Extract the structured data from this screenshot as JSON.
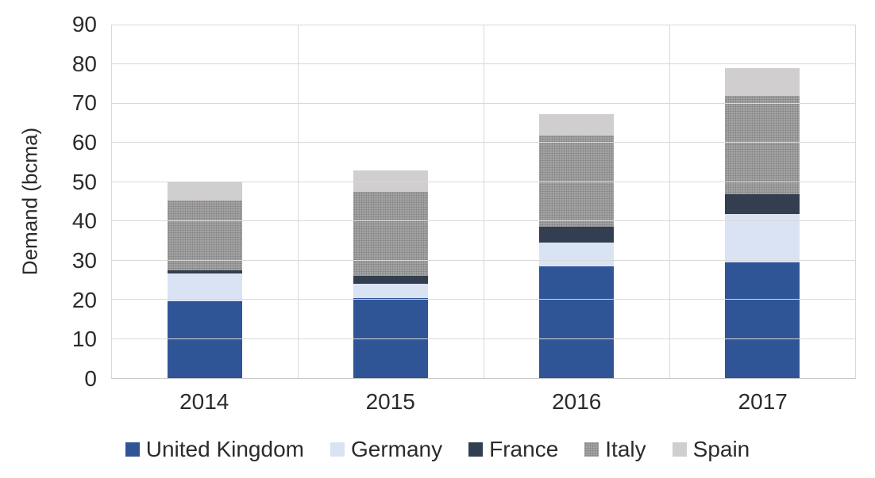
{
  "chart_data": {
    "type": "bar",
    "stacked": true,
    "title": "",
    "xlabel": "",
    "ylabel": "Demand (bcma)",
    "ylim": [
      0,
      90
    ],
    "yticks": [
      0,
      10,
      20,
      30,
      40,
      50,
      60,
      70,
      80,
      90
    ],
    "grid": true,
    "legend_position": "bottom",
    "categories": [
      "2014",
      "2015",
      "2016",
      "2017"
    ],
    "series": [
      {
        "name": "United Kingdom",
        "color": "#2F5597",
        "pattern": false,
        "values": [
          19.6,
          20.5,
          28.5,
          29.5
        ]
      },
      {
        "name": "Germany",
        "color": "#DAE3F3",
        "pattern": false,
        "values": [
          7.1,
          3.5,
          6.0,
          12.4
        ]
      },
      {
        "name": "France",
        "color": "#333F50",
        "pattern": false,
        "values": [
          0.9,
          2.1,
          4.2,
          5.0
        ]
      },
      {
        "name": "Italy",
        "color": "#A3A3A3",
        "pattern": true,
        "values": [
          17.8,
          21.4,
          23.2,
          25.2
        ]
      },
      {
        "name": "Spain",
        "color": "#D0CECE",
        "pattern": false,
        "values": [
          4.5,
          5.4,
          5.5,
          7.0
        ]
      }
    ],
    "totals": [
      49.9,
      52.9,
      67.4,
      79.1
    ]
  },
  "colors": {
    "gridline": "#D9D9D9",
    "axis_line": "#C9C9C9",
    "text": "#2B2B2B"
  }
}
